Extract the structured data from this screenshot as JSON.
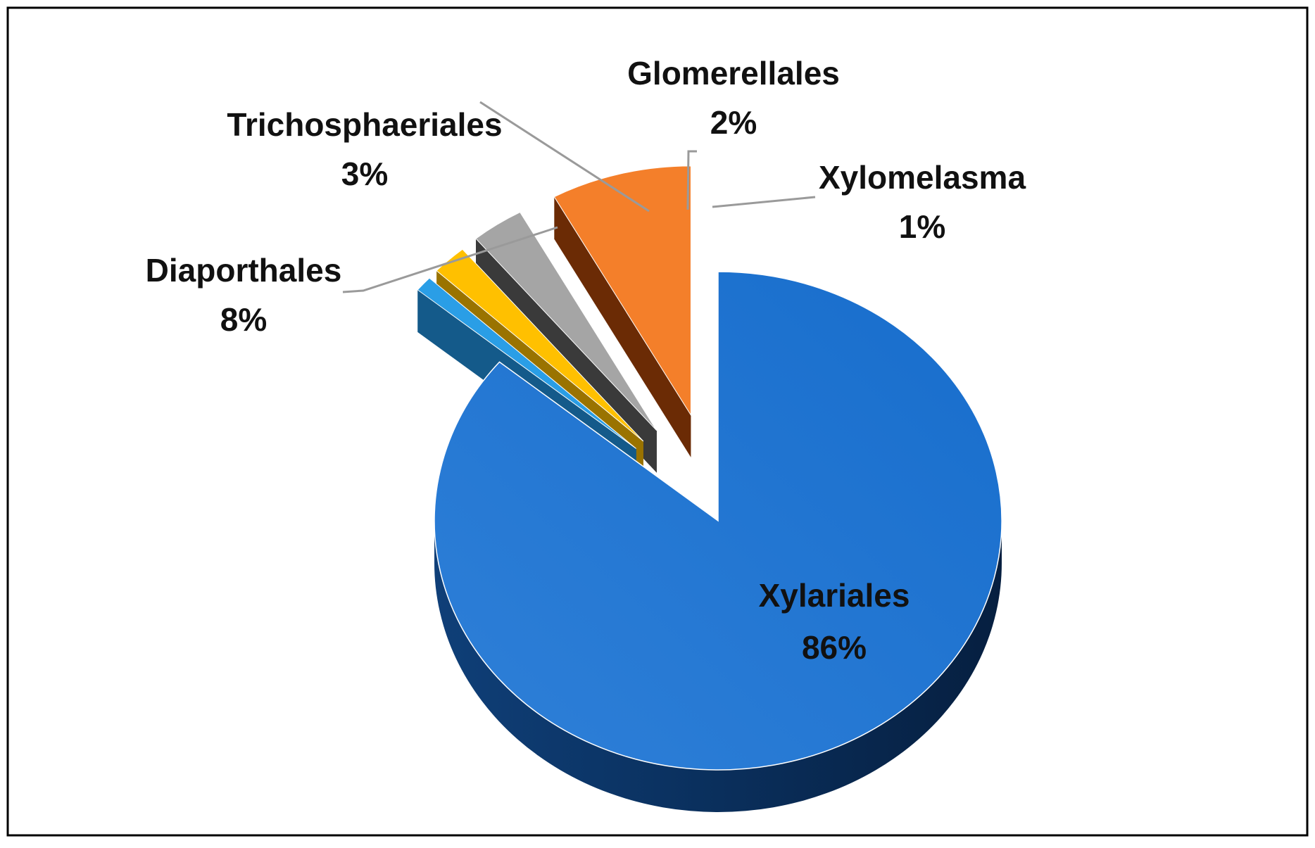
{
  "chart_data": {
    "type": "pie",
    "style": "3d-exploded",
    "title": "",
    "legend": "none",
    "slices": [
      {
        "name": "Xylariales",
        "value": 86,
        "label": "86%",
        "color": "#1f73cf",
        "side_color": "#0b3a70"
      },
      {
        "name": "Xylomelasma",
        "value": 1,
        "label": "1%",
        "color": "#2a9ee6",
        "side_color": "#145a8a"
      },
      {
        "name": "Glomerellales",
        "value": 2,
        "label": "2%",
        "color": "#ffc000",
        "side_color": "#9a7300"
      },
      {
        "name": "Trichosphaeriales",
        "value": 3,
        "label": "3%",
        "color": "#a5a5a5",
        "side_color": "#3a3a3a"
      },
      {
        "name": "Diaporthales",
        "value": 8,
        "label": "8%",
        "color": "#f47f2a",
        "side_color": "#6b2b05"
      }
    ]
  }
}
